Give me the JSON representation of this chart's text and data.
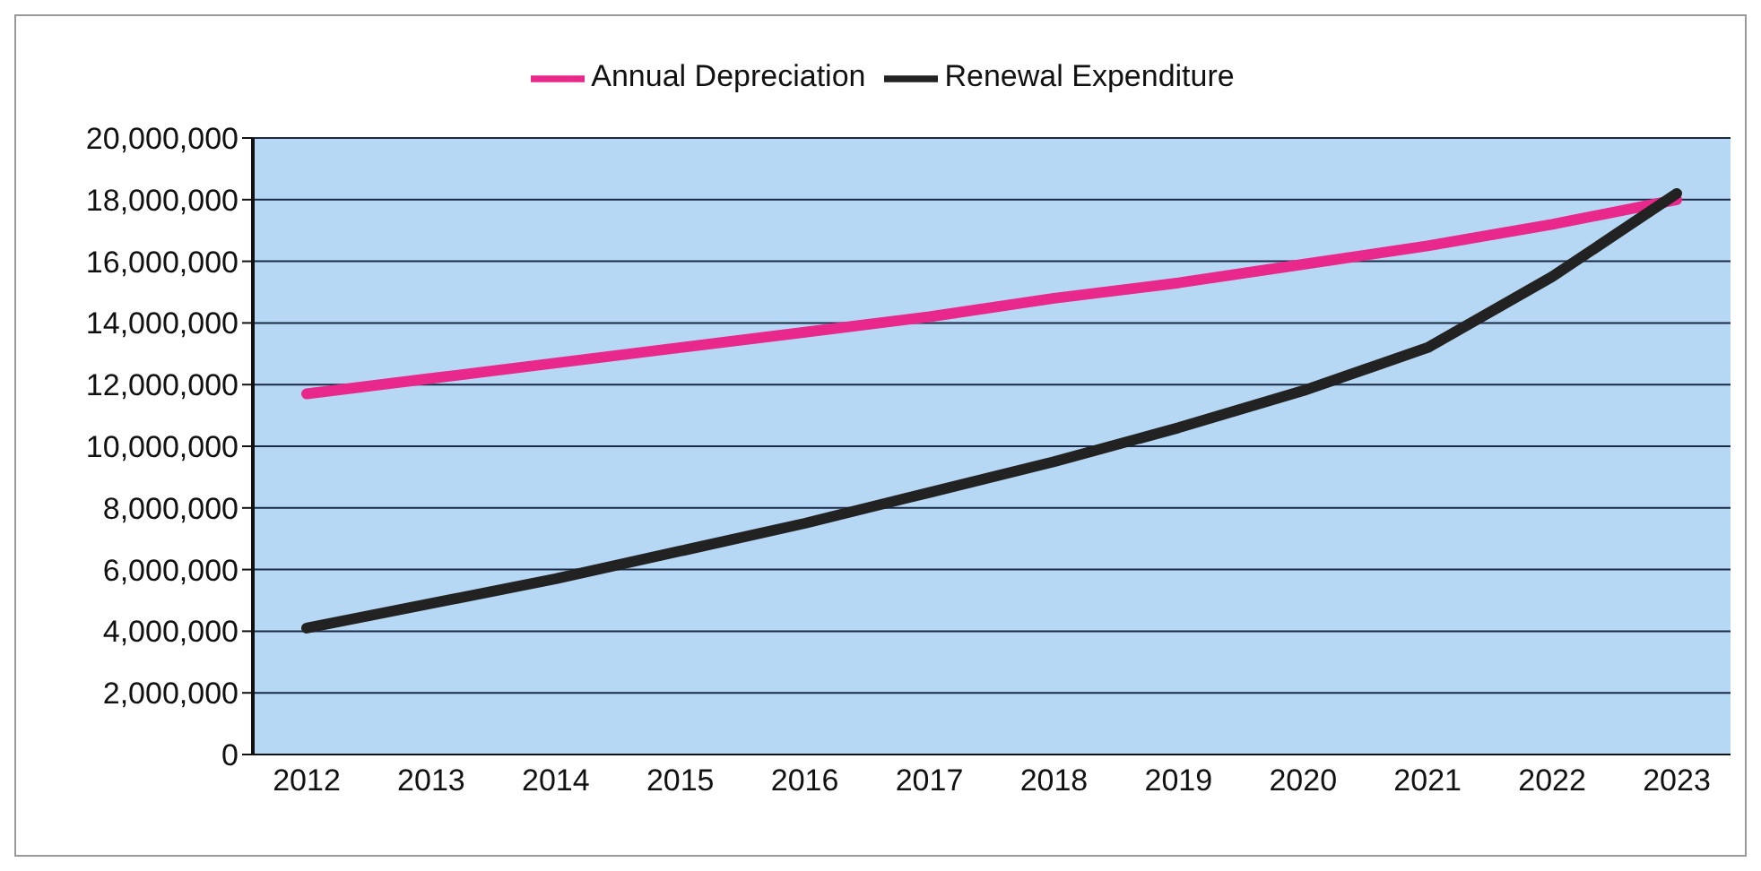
{
  "chart_data": {
    "type": "line",
    "categories": [
      "2012",
      "2013",
      "2014",
      "2015",
      "2016",
      "2017",
      "2018",
      "2019",
      "2020",
      "2021",
      "2022",
      "2023"
    ],
    "series": [
      {
        "name": "Annual Depreciation",
        "color": "#e8288a",
        "values": [
          11700000,
          12200000,
          12700000,
          13200000,
          13700000,
          14200000,
          14800000,
          15300000,
          15900000,
          16500000,
          17200000,
          18000000
        ]
      },
      {
        "name": "Renewal Expenditure",
        "color": "#222222",
        "values": [
          4100000,
          4900000,
          5700000,
          6600000,
          7500000,
          8500000,
          9500000,
          10600000,
          11800000,
          13200000,
          15500000,
          18200000
        ]
      }
    ],
    "ylim": [
      0,
      20000000
    ],
    "yticks": [
      0,
      {
        "value": 2000000,
        "label": "2,000,000"
      },
      {
        "value": 4000000,
        "label": "4,000,000"
      },
      {
        "value": 6000000,
        "label": "6,000,000"
      },
      {
        "value": 8000000,
        "label": "8,000,000"
      },
      {
        "value": 10000000,
        "label": "10,000,000"
      },
      {
        "value": 12000000,
        "label": "12,000,000"
      },
      {
        "value": 14000000,
        "label": "14,000,000"
      },
      {
        "value": 16000000,
        "label": "16,000,000"
      },
      {
        "value": 18000000,
        "label": "18,000,000"
      },
      {
        "value": 20000000,
        "label": "20,000,000"
      }
    ],
    "grid": "y",
    "legend": "top",
    "marker": "none",
    "line_style": "solid"
  }
}
